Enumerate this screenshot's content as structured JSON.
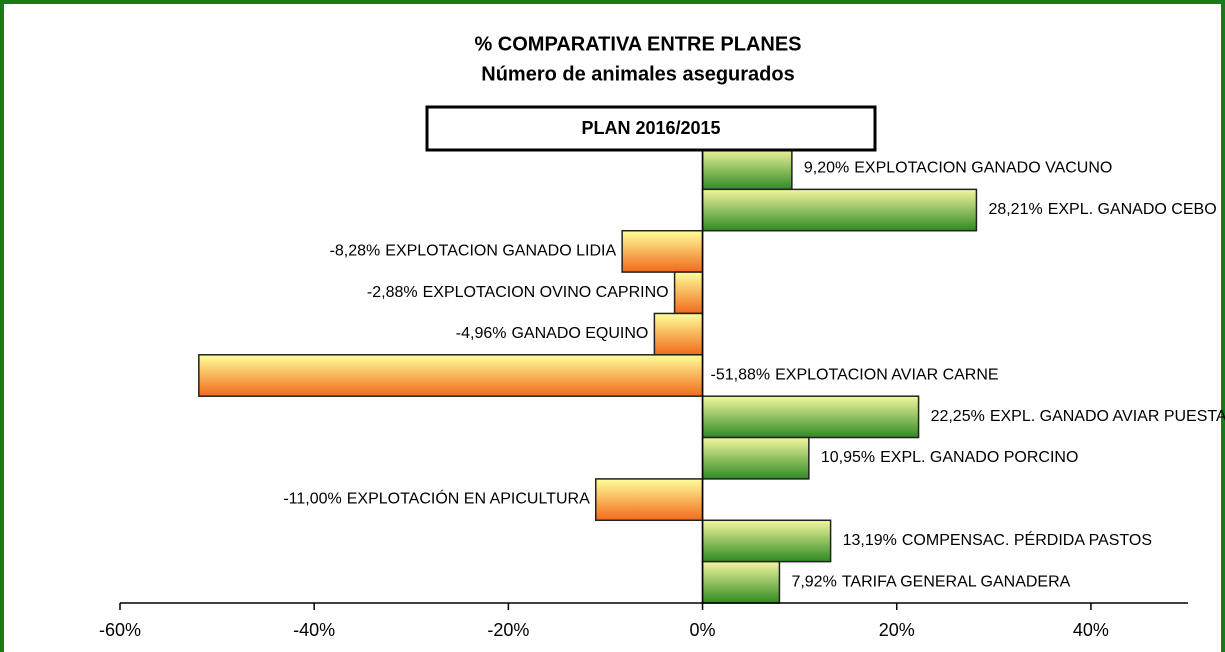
{
  "chart_data": {
    "type": "barh",
    "title": "% COMPARATIVA  ENTRE  PLANES",
    "subtitle": "Número de animales asegurados",
    "legend_box": "PLAN 2016/2015",
    "categories": [
      "EXPLOTACION  GANADO VACUNO",
      "EXPL. GANADO CEBO",
      "EXPLOTACION GANADO LIDIA",
      "EXPLOTACION OVINO CAPRINO",
      "GANADO EQUINO",
      "EXPLOTACION AVIAR CARNE",
      "EXPL. GANADO AVIAR PUESTA",
      "EXPL. GANADO PORCINO",
      "EXPLOTACIÓN EN APICULTURA",
      "COMPENSAC. PÉRDIDA PASTOS",
      "TARIFA GENERAL GANADERA"
    ],
    "values": [
      9.2,
      28.21,
      -8.28,
      -2.88,
      -4.96,
      -51.88,
      22.25,
      10.95,
      -11.0,
      13.19,
      7.92
    ],
    "value_labels": [
      "9,20%",
      "28,21%",
      "-8,28%",
      "-2,88%",
      "-4,96%",
      "-51,88%",
      "22,25%",
      "10,95%",
      "-11,00%",
      "13,19%",
      "7,92%"
    ],
    "colors": {
      "positive": "#2f8a22",
      "negative": "#f26a1b"
    },
    "xlim": [
      -60,
      50
    ],
    "xticks": [
      {
        "value": -60,
        "label": "-60%"
      },
      {
        "value": -40,
        "label": "-40%"
      },
      {
        "value": -20,
        "label": "-20%"
      },
      {
        "value": 0,
        "label": "0%"
      },
      {
        "value": 20,
        "label": "20%"
      },
      {
        "value": 40,
        "label": "40%"
      }
    ]
  }
}
